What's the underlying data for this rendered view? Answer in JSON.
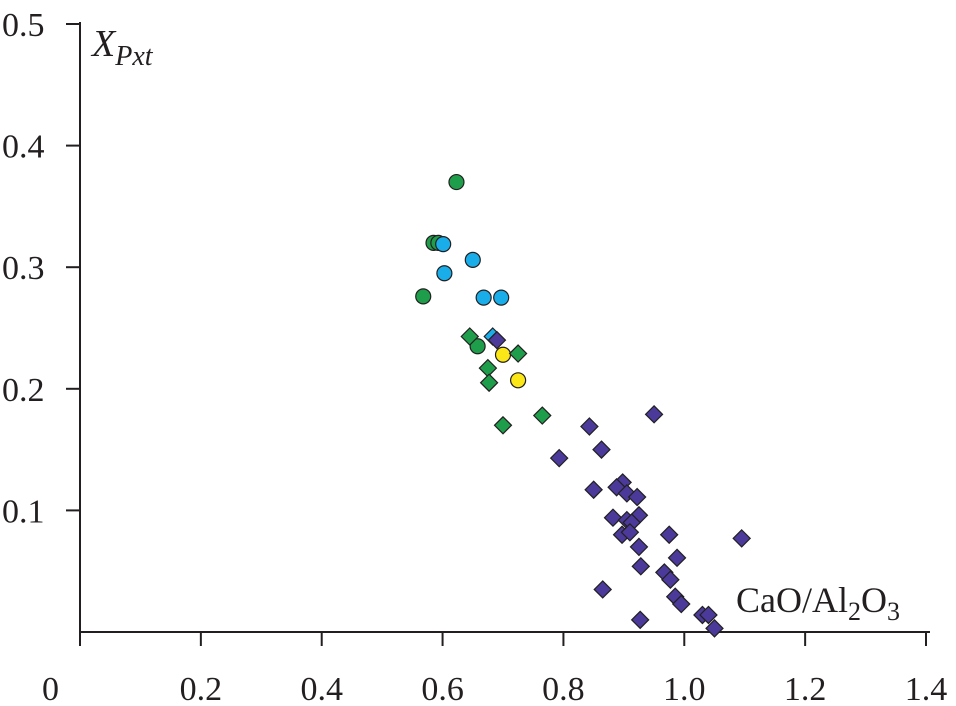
{
  "chart_data": {
    "type": "scatter",
    "title": "",
    "xlabel": "CaO/Al2O3",
    "ylabel": "XPxt",
    "xlim": [
      0,
      1.4
    ],
    "ylim": [
      0,
      0.5
    ],
    "grid": false,
    "x_ticks": [
      "0",
      "0.2",
      "0.4",
      "0.6",
      "0.8",
      "1.0",
      "1.2",
      "1.4"
    ],
    "y_ticks": [
      "0.1",
      "0.2",
      "0.3",
      "0.4",
      "0.5"
    ],
    "xlabel_parts": {
      "a": "CaO/Al",
      "b": "2",
      "c": "O",
      "d": "3"
    },
    "ylabel_parts": {
      "main": "X",
      "sub": "Pxt"
    },
    "colors": {
      "green": "#1e9e4a",
      "cyan": "#19aeea",
      "yellow": "#fbe717",
      "purple": "#4b3a99",
      "axis": "#231f20"
    },
    "series": [
      {
        "name": "green-circles",
        "marker": "circle",
        "color": "#1e9e4a",
        "points": [
          [
            0.623,
            0.37
          ],
          [
            0.585,
            0.32
          ],
          [
            0.593,
            0.32
          ],
          [
            0.568,
            0.276
          ],
          [
            0.658,
            0.235
          ]
        ]
      },
      {
        "name": "cyan-circles",
        "marker": "circle",
        "color": "#19aeea",
        "points": [
          [
            0.601,
            0.319
          ],
          [
            0.65,
            0.306
          ],
          [
            0.603,
            0.295
          ],
          [
            0.668,
            0.275
          ],
          [
            0.697,
            0.275
          ]
        ]
      },
      {
        "name": "yellow-circles",
        "marker": "circle",
        "color": "#fbe717",
        "points": [
          [
            0.7,
            0.228
          ],
          [
            0.725,
            0.207
          ]
        ]
      },
      {
        "name": "green-diamonds",
        "marker": "diamond",
        "color": "#1e9e4a",
        "points": [
          [
            0.645,
            0.243
          ],
          [
            0.725,
            0.229
          ],
          [
            0.675,
            0.217
          ],
          [
            0.677,
            0.205
          ],
          [
            0.765,
            0.178
          ],
          [
            0.7,
            0.17
          ]
        ]
      },
      {
        "name": "cyan-diamonds",
        "marker": "diamond",
        "color": "#19aeea",
        "points": [
          [
            0.683,
            0.243
          ]
        ]
      },
      {
        "name": "purple-diamonds",
        "marker": "diamond",
        "color": "#4b3a99",
        "points": [
          [
            0.69,
            0.24
          ],
          [
            0.95,
            0.179
          ],
          [
            0.843,
            0.169
          ],
          [
            0.863,
            0.15
          ],
          [
            0.793,
            0.143
          ],
          [
            0.898,
            0.123
          ],
          [
            0.888,
            0.119
          ],
          [
            0.85,
            0.117
          ],
          [
            0.905,
            0.114
          ],
          [
            0.922,
            0.111
          ],
          [
            0.925,
            0.096
          ],
          [
            0.882,
            0.094
          ],
          [
            0.905,
            0.092
          ],
          [
            0.913,
            0.09
          ],
          [
            0.897,
            0.08
          ],
          [
            0.91,
            0.082
          ],
          [
            0.975,
            0.08
          ],
          [
            1.095,
            0.077
          ],
          [
            0.925,
            0.07
          ],
          [
            0.988,
            0.061
          ],
          [
            0.928,
            0.054
          ],
          [
            0.967,
            0.049
          ],
          [
            0.977,
            0.043
          ],
          [
            0.865,
            0.035
          ],
          [
            0.985,
            0.029
          ],
          [
            0.995,
            0.023
          ],
          [
            1.03,
            0.014
          ],
          [
            1.04,
            0.014
          ],
          [
            0.927,
            0.01
          ],
          [
            1.05,
            0.003
          ]
        ]
      }
    ]
  }
}
